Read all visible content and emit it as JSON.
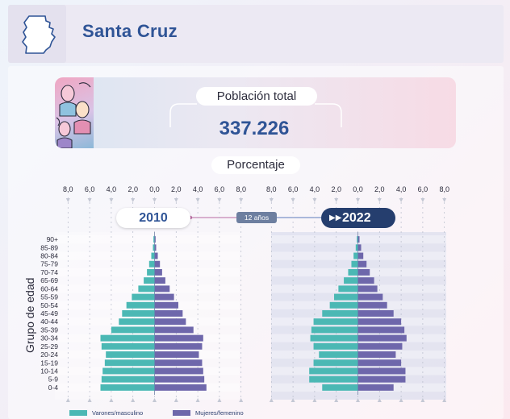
{
  "header": {
    "title": "Santa Cruz",
    "region_icon": "province-map-icon"
  },
  "population": {
    "label": "Población total",
    "value": "337.226"
  },
  "axis_section": {
    "label": "Porcentaje"
  },
  "years": {
    "left": "2010",
    "right": "2022",
    "span_label": "12 años"
  },
  "y_axis": {
    "label": "Grupo de edad"
  },
  "legend": {
    "male": "Varones/masculino",
    "female": "Mujeres/femenino"
  },
  "colors": {
    "male": "#4bb8b4",
    "female": "#6e67ab",
    "accent": "#2f5496",
    "dark": "#253e6e"
  },
  "chart_data": [
    {
      "type": "bar",
      "orientation": "horizontal",
      "subtype": "population-pyramid",
      "title": "2010",
      "xlabel": "Porcentaje",
      "ylabel": "Grupo de edad",
      "xlim": [
        -8.0,
        8.0
      ],
      "x_tick_labels": [
        "8,0",
        "6,0",
        "4,0",
        "2,0",
        "0,0",
        "2,0",
        "4,0",
        "6,0",
        "8,0"
      ],
      "categories": [
        "0-4",
        "5-9",
        "10-14",
        "15-19",
        "20-24",
        "25-29",
        "30-34",
        "35-39",
        "40-44",
        "45-49",
        "50-54",
        "55-59",
        "60-64",
        "65-69",
        "70-74",
        "75-79",
        "80-84",
        "85-89",
        "90+"
      ],
      "series": [
        {
          "name": "Varones/masculino",
          "values": [
            5.0,
            4.9,
            4.8,
            4.6,
            4.5,
            4.9,
            5.0,
            4.0,
            3.3,
            3.0,
            2.6,
            2.1,
            1.5,
            1.0,
            0.7,
            0.5,
            0.3,
            0.15,
            0.1
          ]
        },
        {
          "name": "Mujeres/femenino",
          "values": [
            4.8,
            4.6,
            4.5,
            4.4,
            4.1,
            4.4,
            4.5,
            3.6,
            2.9,
            2.6,
            2.2,
            1.8,
            1.4,
            1.0,
            0.7,
            0.5,
            0.3,
            0.15,
            0.1
          ]
        }
      ]
    },
    {
      "type": "bar",
      "orientation": "horizontal",
      "subtype": "population-pyramid",
      "title": "2022",
      "xlabel": "Porcentaje",
      "ylabel": "Grupo de edad",
      "xlim": [
        -8.0,
        8.0
      ],
      "x_tick_labels": [
        "8,0",
        "6,0",
        "4,0",
        "2,0",
        "0,0",
        "2,0",
        "4,0",
        "6,0",
        "8,0"
      ],
      "categories": [
        "0-4",
        "5-9",
        "10-14",
        "15-19",
        "20-24",
        "25-29",
        "30-34",
        "35-39",
        "40-44",
        "45-49",
        "50-54",
        "55-59",
        "60-64",
        "65-69",
        "70-74",
        "75-79",
        "80-84",
        "85-89",
        "90+"
      ],
      "series": [
        {
          "name": "Varones/masculino",
          "values": [
            3.3,
            4.5,
            4.5,
            4.1,
            3.6,
            4.1,
            4.4,
            4.3,
            4.1,
            3.3,
            2.6,
            2.2,
            1.8,
            1.3,
            0.9,
            0.6,
            0.4,
            0.2,
            0.1
          ]
        },
        {
          "name": "Mujeres/femenino",
          "values": [
            3.3,
            4.4,
            4.4,
            4.0,
            3.5,
            4.1,
            4.5,
            4.3,
            4.0,
            3.3,
            2.7,
            2.3,
            1.8,
            1.5,
            1.1,
            0.8,
            0.5,
            0.3,
            0.15
          ]
        }
      ]
    }
  ]
}
